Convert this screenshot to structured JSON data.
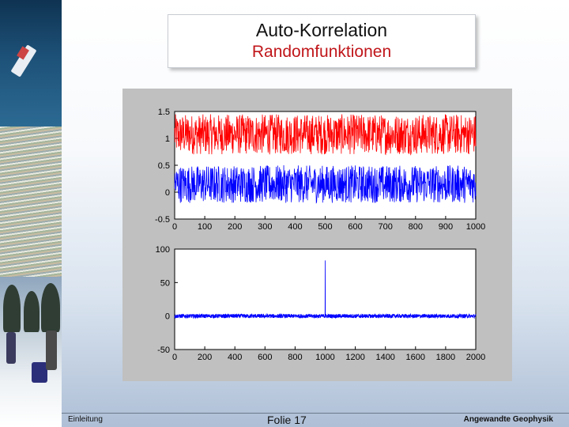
{
  "slide": {
    "title": "Auto-Korrelation",
    "subtitle": "Randomfunktionen",
    "footer_left": "Einleitung",
    "footer_center": "Folie 17",
    "footer_right": "Angewandte Geophysik"
  },
  "chart_data": [
    {
      "type": "line",
      "title": "",
      "xlabel": "",
      "ylabel": "",
      "xlim": [
        0,
        1000
      ],
      "ylim": [
        -0.5,
        1.5
      ],
      "xticks": [
        "0",
        "100",
        "200",
        "300",
        "400",
        "500",
        "600",
        "700",
        "800",
        "900",
        "1000"
      ],
      "yticks": [
        "-0.5",
        "0",
        "0.5",
        "1",
        "1.5"
      ],
      "series": [
        {
          "color": "#ff0000",
          "kind": "uniform random noise",
          "n_points": 1000,
          "min": 0.7,
          "max": 1.45,
          "mean": 1.05
        },
        {
          "color": "#0000ff",
          "kind": "uniform random noise",
          "n_points": 1000,
          "min": -0.2,
          "max": 0.5,
          "mean": 0.15
        }
      ],
      "grid": false
    },
    {
      "type": "line",
      "title": "",
      "xlabel": "",
      "ylabel": "",
      "xlim": [
        0,
        2000
      ],
      "ylim": [
        -50,
        100
      ],
      "xticks": [
        "0",
        "200",
        "400",
        "600",
        "800",
        "1000",
        "1200",
        "1400",
        "1600",
        "1800",
        "2000"
      ],
      "yticks": [
        "-50",
        "0",
        "50",
        "100"
      ],
      "series": [
        {
          "color": "#0000ff",
          "kind": "autocorrelation",
          "peak_x": 1000,
          "peak_y": 83,
          "noise_amplitude": 3
        }
      ],
      "grid": false
    }
  ]
}
